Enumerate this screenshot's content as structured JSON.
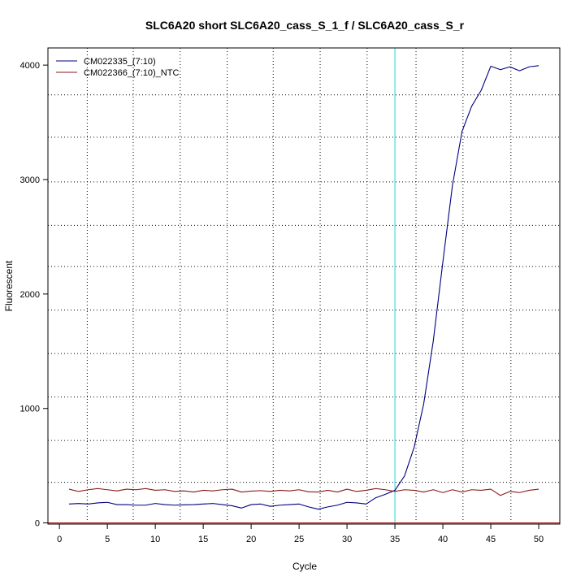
{
  "chart_data": {
    "type": "line",
    "title": "SLC6A20 short SLC6A20_cass_S_1_f / SLC6A20_cass_S_r",
    "xlabel": "Cycle",
    "ylabel": "Fluorescent",
    "xlim": [
      -1.2,
      52.2
    ],
    "ylim": [
      -10,
      4150
    ],
    "x_ticks": [
      0,
      5,
      10,
      15,
      20,
      25,
      30,
      35,
      40,
      45,
      50
    ],
    "y_ticks": [
      0,
      1000,
      2000,
      3000,
      4000
    ],
    "vertical_gridlines": [
      2.9,
      7.7,
      12.6,
      17.5,
      22.3,
      27.2,
      32.1,
      37.2,
      42.1,
      47.1
    ],
    "horizontal_gridlines": [
      -10,
      355,
      720,
      1100,
      1480,
      1860,
      2240,
      2600,
      2980,
      3370,
      3740
    ],
    "threshold": {
      "x": 35,
      "color": "#40e0e0"
    },
    "baseline": {
      "y": 0,
      "color": "#b22222"
    },
    "grid": true,
    "legend_position": "top-left",
    "series": [
      {
        "name": "CM022335_(7:10)",
        "color": "#00007f",
        "x": [
          1,
          2,
          3,
          4,
          5,
          6,
          7,
          8,
          9,
          10,
          11,
          12,
          13,
          14,
          15,
          16,
          17,
          18,
          19,
          20,
          21,
          22,
          23,
          24,
          25,
          26,
          27,
          28,
          29,
          30,
          31,
          32,
          33,
          34,
          35,
          36,
          37,
          38,
          39,
          40,
          41,
          42,
          43,
          44,
          45,
          46,
          47,
          48,
          49,
          50
        ],
        "values": [
          165,
          170,
          165,
          175,
          180,
          160,
          160,
          155,
          155,
          170,
          160,
          155,
          158,
          160,
          165,
          170,
          160,
          150,
          130,
          160,
          165,
          145,
          155,
          160,
          165,
          140,
          120,
          140,
          155,
          180,
          175,
          165,
          220,
          250,
          285,
          410,
          660,
          1040,
          1590,
          2280,
          2950,
          3420,
          3640,
          3780,
          3990,
          3960,
          3985,
          3950,
          3985,
          3995
        ]
      },
      {
        "name": "CM022366_(7:10)_NTC",
        "color": "#8b1a1a",
        "x": [
          1,
          2,
          3,
          4,
          5,
          6,
          7,
          8,
          9,
          10,
          11,
          12,
          13,
          14,
          15,
          16,
          17,
          18,
          19,
          20,
          21,
          22,
          23,
          24,
          25,
          26,
          27,
          28,
          29,
          30,
          31,
          32,
          33,
          34,
          35,
          36,
          37,
          38,
          39,
          40,
          41,
          42,
          43,
          44,
          45,
          46,
          47,
          48,
          49,
          50
        ],
        "values": [
          295,
          275,
          290,
          300,
          290,
          280,
          295,
          290,
          300,
          285,
          290,
          275,
          280,
          270,
          285,
          280,
          290,
          295,
          270,
          278,
          282,
          275,
          285,
          280,
          290,
          272,
          270,
          285,
          270,
          295,
          275,
          285,
          300,
          290,
          275,
          290,
          285,
          270,
          290,
          265,
          290,
          270,
          290,
          285,
          295,
          240,
          275,
          265,
          285,
          295
        ]
      }
    ]
  }
}
